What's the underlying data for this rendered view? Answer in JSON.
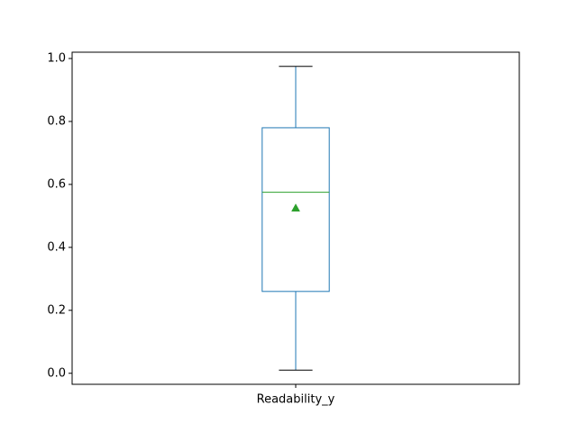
{
  "chart_data": {
    "type": "box",
    "categories": [
      "Readability_y"
    ],
    "series": [
      {
        "whisker_low": 0.01,
        "q1": 0.26,
        "median": 0.575,
        "q3": 0.78,
        "whisker_high": 0.975,
        "mean": 0.525
      }
    ],
    "title": "",
    "xlabel": "",
    "ylabel": "",
    "ylim": [
      -0.035,
      1.02
    ],
    "y_ticks": [
      0.0,
      0.2,
      0.4,
      0.6,
      0.8,
      1.0
    ],
    "y_tick_labels": [
      "0.0",
      "0.2",
      "0.4",
      "0.6",
      "0.8",
      "1.0"
    ],
    "grid": false,
    "colors": {
      "box": "#1f77b4",
      "median": "#2ca02c",
      "mean_marker": "#2ca02c",
      "whisker_cap": "#000000",
      "axes": "#000000"
    }
  }
}
